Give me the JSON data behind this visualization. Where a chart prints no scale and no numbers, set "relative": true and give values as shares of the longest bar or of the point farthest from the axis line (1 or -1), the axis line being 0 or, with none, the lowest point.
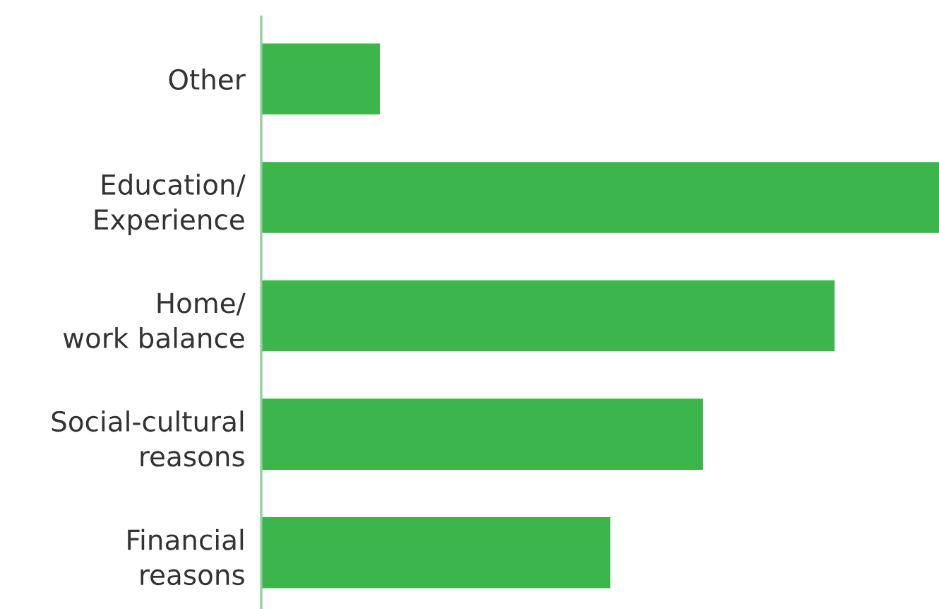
{
  "chart_data": {
    "type": "bar",
    "orientation": "horizontal",
    "relative": true,
    "categories": [
      "Other",
      "Education/\nExperience",
      "Home/\nwork balance",
      "Social-cultural\nreasons",
      "Financial\nreasons"
    ],
    "values": [
      0.175,
      1,
      0.846,
      0.652,
      0.515
    ],
    "color": "#3cb54a"
  }
}
